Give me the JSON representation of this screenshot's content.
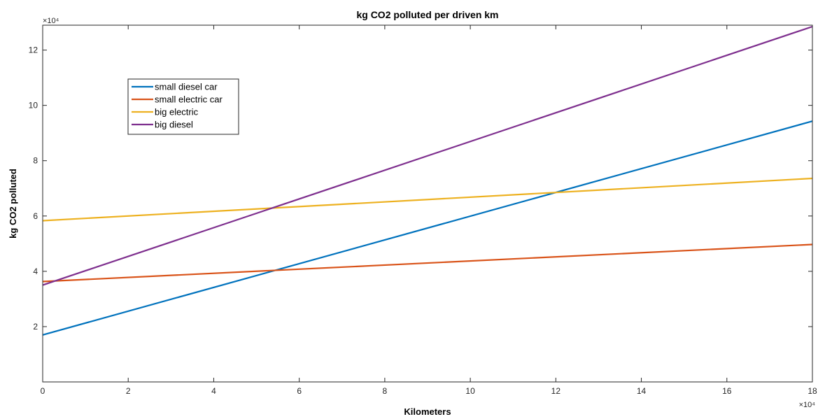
{
  "chart_data": {
    "type": "line",
    "title": "kg CO2 polluted per driven km",
    "xlabel": "Kilometers",
    "ylabel": "kg CO2 polluted",
    "x_multiplier": "×10⁴",
    "y_multiplier": "×10⁴",
    "xlim": [
      0,
      180000
    ],
    "ylim": [
      0,
      129000
    ],
    "x_ticks": [
      0,
      20000,
      40000,
      60000,
      80000,
      100000,
      120000,
      140000,
      160000,
      180000
    ],
    "x_tick_labels": [
      "0",
      "2",
      "4",
      "6",
      "8",
      "10",
      "12",
      "14",
      "16",
      "18"
    ],
    "y_ticks": [
      20000,
      40000,
      60000,
      80000,
      100000,
      120000
    ],
    "y_tick_labels": [
      "2",
      "4",
      "6",
      "8",
      "10",
      "12"
    ],
    "grid": false,
    "legend_position": "top-left",
    "series": [
      {
        "name": "small diesel car",
        "color": "#0072BD",
        "x": [
          0,
          180000
        ],
        "y": [
          17000,
          94300
        ]
      },
      {
        "name": "small electric car",
        "color": "#D95319",
        "x": [
          0,
          180000
        ],
        "y": [
          36300,
          49700
        ]
      },
      {
        "name": "big electric",
        "color": "#EDB120",
        "x": [
          0,
          180000
        ],
        "y": [
          58300,
          73600
        ]
      },
      {
        "name": "big diesel",
        "color": "#7E2F8E",
        "x": [
          0,
          180000
        ],
        "y": [
          35000,
          128500
        ]
      }
    ]
  }
}
